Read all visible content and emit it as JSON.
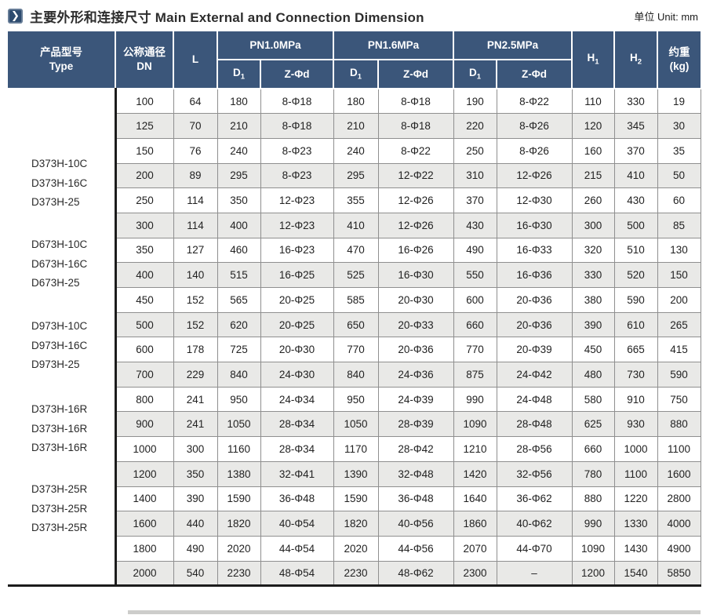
{
  "title": {
    "icon": "double-chevron-right",
    "zh": "主要外形和连接尺寸",
    "en": "Main External and Connection Dimension",
    "unit": "单位 Unit: mm"
  },
  "colors": {
    "header_blue": "#3b567a",
    "icon_blue": "#2d4b6f",
    "stripe_gray": "#e9e9e7",
    "grid_gray": "#8f8f8f"
  },
  "table": {
    "headers": {
      "type_zh": "产品型号",
      "type_en": "Type",
      "dn_zh": "公称通径",
      "dn_en": "DN",
      "l": "L",
      "pn_groups": [
        {
          "label": "PN1.0MPa"
        },
        {
          "label": "PN1.6MPa"
        },
        {
          "label": "PN2.5MPa"
        }
      ],
      "d1_base": "D",
      "d1_sub": "1",
      "z_label": "Z-Φd",
      "h1_base": "H",
      "h1_sub": "1",
      "h2_base": "H",
      "h2_sub": "2",
      "weight_zh": "约重",
      "weight_en": "(kg)"
    },
    "type_groups": [
      [
        "D373H-10C",
        "D373H-16C",
        "D373H-25"
      ],
      [
        "D673H-10C",
        "D673H-16C",
        "D673H-25"
      ],
      [
        "D973H-10C",
        "D973H-16C",
        "D973H-25"
      ],
      [
        "D373H-16R",
        "D373H-16R",
        "D373H-16R"
      ],
      [
        "D373H-25R",
        "D373H-25R",
        "D373H-25R"
      ]
    ],
    "rows": [
      [
        "100",
        "64",
        "180",
        "8-Φ18",
        "180",
        "8-Φ18",
        "190",
        "8-Φ22",
        "110",
        "330",
        "19"
      ],
      [
        "125",
        "70",
        "210",
        "8-Φ18",
        "210",
        "8-Φ18",
        "220",
        "8-Φ26",
        "120",
        "345",
        "30"
      ],
      [
        "150",
        "76",
        "240",
        "8-Φ23",
        "240",
        "8-Φ22",
        "250",
        "8-Φ26",
        "160",
        "370",
        "35"
      ],
      [
        "200",
        "89",
        "295",
        "8-Φ23",
        "295",
        "12-Φ22",
        "310",
        "12-Φ26",
        "215",
        "410",
        "50"
      ],
      [
        "250",
        "114",
        "350",
        "12-Φ23",
        "355",
        "12-Φ26",
        "370",
        "12-Φ30",
        "260",
        "430",
        "60"
      ],
      [
        "300",
        "114",
        "400",
        "12-Φ23",
        "410",
        "12-Φ26",
        "430",
        "16-Φ30",
        "300",
        "500",
        "85"
      ],
      [
        "350",
        "127",
        "460",
        "16-Φ23",
        "470",
        "16-Φ26",
        "490",
        "16-Φ33",
        "320",
        "510",
        "130"
      ],
      [
        "400",
        "140",
        "515",
        "16-Φ25",
        "525",
        "16-Φ30",
        "550",
        "16-Φ36",
        "330",
        "520",
        "150"
      ],
      [
        "450",
        "152",
        "565",
        "20-Φ25",
        "585",
        "20-Φ30",
        "600",
        "20-Φ36",
        "380",
        "590",
        "200"
      ],
      [
        "500",
        "152",
        "620",
        "20-Φ25",
        "650",
        "20-Φ33",
        "660",
        "20-Φ36",
        "390",
        "610",
        "265"
      ],
      [
        "600",
        "178",
        "725",
        "20-Φ30",
        "770",
        "20-Φ36",
        "770",
        "20-Φ39",
        "450",
        "665",
        "415"
      ],
      [
        "700",
        "229",
        "840",
        "24-Φ30",
        "840",
        "24-Φ36",
        "875",
        "24-Φ42",
        "480",
        "730",
        "590"
      ],
      [
        "800",
        "241",
        "950",
        "24-Φ34",
        "950",
        "24-Φ39",
        "990",
        "24-Φ48",
        "580",
        "910",
        "750"
      ],
      [
        "900",
        "241",
        "1050",
        "28-Φ34",
        "1050",
        "28-Φ39",
        "1090",
        "28-Φ48",
        "625",
        "930",
        "880"
      ],
      [
        "1000",
        "300",
        "1160",
        "28-Φ34",
        "1170",
        "28-Φ42",
        "1210",
        "28-Φ56",
        "660",
        "1000",
        "1100"
      ],
      [
        "1200",
        "350",
        "1380",
        "32-Φ41",
        "1390",
        "32-Φ48",
        "1420",
        "32-Φ56",
        "780",
        "1100",
        "1600"
      ],
      [
        "1400",
        "390",
        "1590",
        "36-Φ48",
        "1590",
        "36-Φ48",
        "1640",
        "36-Φ62",
        "880",
        "1220",
        "2800"
      ],
      [
        "1600",
        "440",
        "1820",
        "40-Φ54",
        "1820",
        "40-Φ56",
        "1860",
        "40-Φ62",
        "990",
        "1330",
        "4000"
      ],
      [
        "1800",
        "490",
        "2020",
        "44-Φ54",
        "2020",
        "44-Φ56",
        "2070",
        "44-Φ70",
        "1090",
        "1430",
        "4900"
      ],
      [
        "2000",
        "540",
        "2230",
        "48-Φ54",
        "2230",
        "48-Φ62",
        "2300",
        "–",
        "1200",
        "1540",
        "5850"
      ]
    ]
  }
}
